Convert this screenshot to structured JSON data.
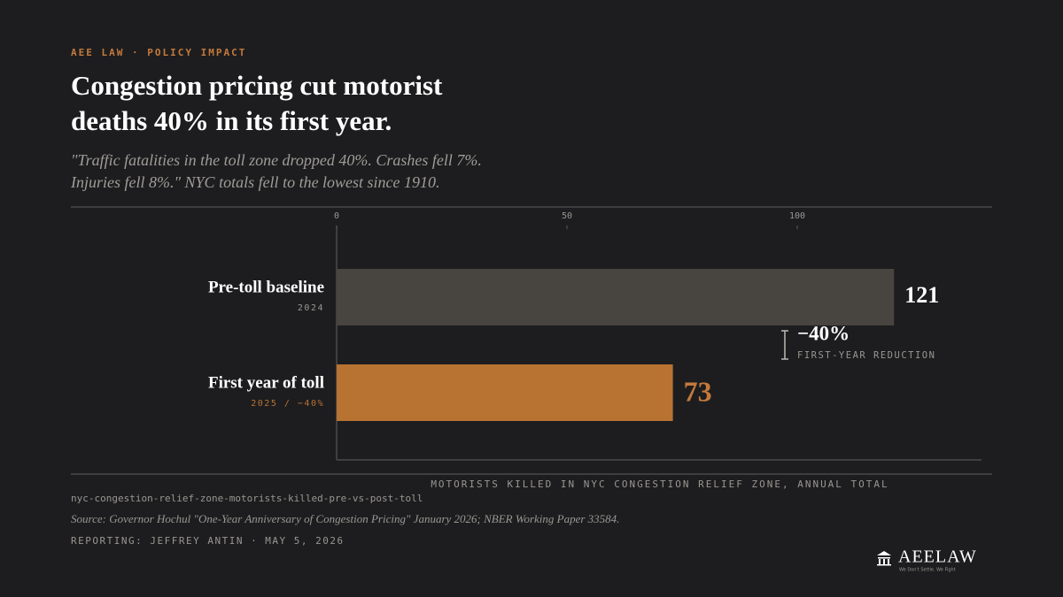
{
  "chart_data": {
    "type": "bar",
    "orientation": "horizontal",
    "kicker": "AEE LAW · POLICY IMPACT",
    "title": [
      "Congestion pricing cut motorist",
      "deaths 40% in its first year."
    ],
    "subtitle": [
      "\"Traffic fatalities in the toll zone dropped 40%. Crashes fell 7%.",
      "Injuries fell 8%.\" NYC totals fell to the lowest since 1910."
    ],
    "categories": [
      "Pre-toll baseline",
      "First year of toll"
    ],
    "category_sublabels": [
      "2024",
      "2025 / −40%"
    ],
    "values": [
      121,
      73
    ],
    "colors": [
      "#48443f",
      "#b87333"
    ],
    "value_label_colors": [
      "#ffffff",
      "#c47a3c"
    ],
    "xlim": [
      0,
      140
    ],
    "xticks": [
      0,
      50,
      100
    ],
    "x_label": "MOTORISTS KILLED IN NYC CONGESTION RELIEF ZONE, ANNUAL TOTAL",
    "annotation": {
      "label": "−40%",
      "text": "FIRST-YEAR REDUCTION"
    },
    "slug": "nyc-congestion-relief-zone-motorists-killed-pre-vs-post-toll",
    "source": "Source: Governor Hochul \"One-Year Anniversary of Congestion Pricing\" January 2026; NBER Working Paper 33584.",
    "byline": "REPORTING: JEFFREY ANTIN · MAY 5, 2026",
    "logo": {
      "name": "AEELAW",
      "tagline": "We Don't Settle. We Fight"
    }
  }
}
